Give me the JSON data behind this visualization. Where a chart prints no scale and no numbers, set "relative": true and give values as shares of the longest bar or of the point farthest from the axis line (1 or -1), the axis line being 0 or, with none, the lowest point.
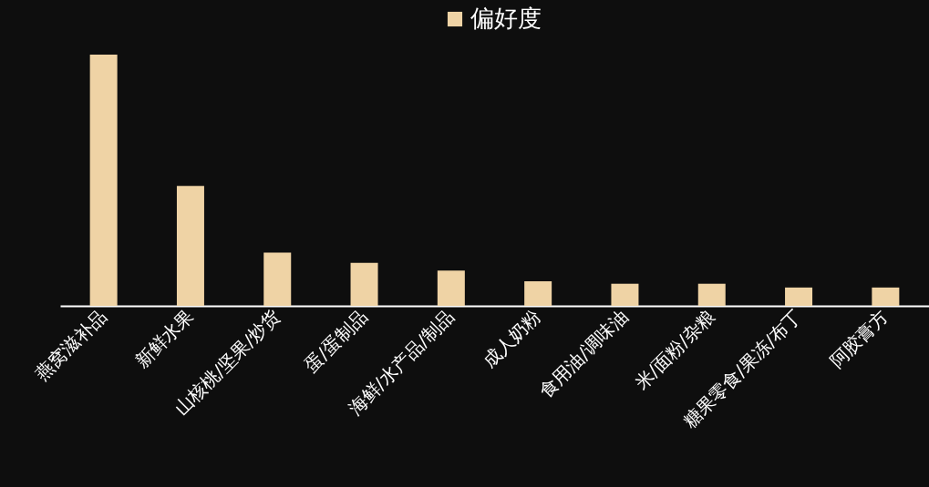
{
  "chart_data": {
    "type": "bar",
    "relative": true,
    "legend": "top",
    "grid": false,
    "categories": [
      "燕窝滋补品",
      "新鲜水果",
      "山核桃/坚果/炒货",
      "蛋/蛋制品",
      "海鲜/水产品/制品",
      "成人奶粉",
      "食用油/调味油",
      "米/面粉/杂粮",
      "糖果零食/果冻/布丁",
      "阿胶膏方"
    ],
    "series": [
      {
        "name": "偏好度",
        "color": "#efd3a5",
        "values": [
          1,
          0.477,
          0.212,
          0.171,
          0.14,
          0.098,
          0.088,
          0.088,
          0.073,
          0.073
        ]
      }
    ]
  }
}
